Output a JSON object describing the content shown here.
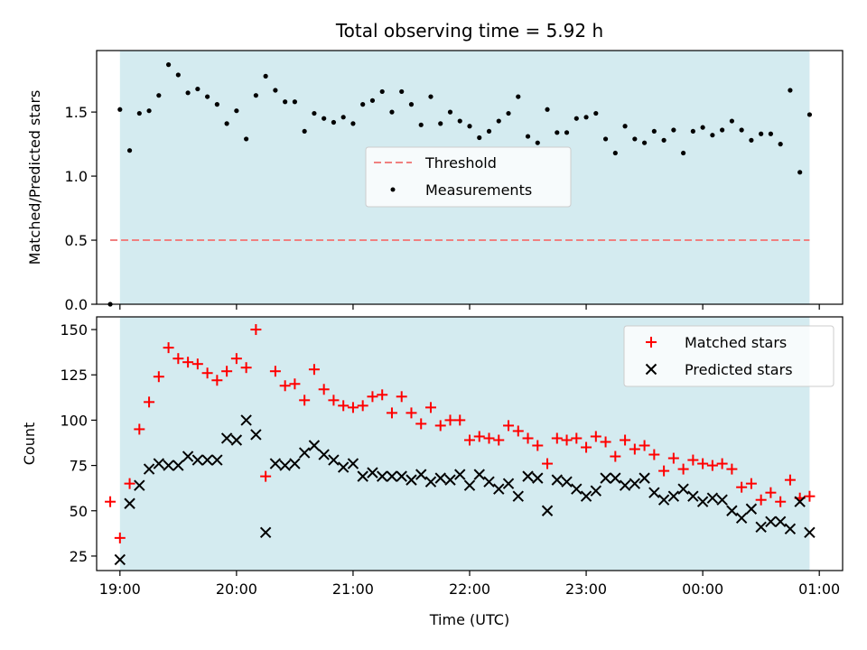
{
  "chart_data": [
    {
      "type": "scatter",
      "title": "Total observing time = 5.92 h",
      "ylabel": "Matched/Predicted stars",
      "xlabel": "",
      "xlim": [
        "18:48",
        "01:12"
      ],
      "ylim": [
        0,
        1.98
      ],
      "y_ticks": [
        0.0,
        0.5,
        1.0,
        1.5
      ],
      "y_tick_labels": [
        "0.0",
        "0.5",
        "1.0",
        "1.5"
      ],
      "x_tick_values": [
        "19:00",
        "20:00",
        "21:00",
        "22:00",
        "23:00",
        "00:00",
        "01:00"
      ],
      "grid": false,
      "legend_position": "center",
      "shaded_span": {
        "from": "19:00",
        "to": "00:55",
        "color": "#d4ebf0"
      },
      "threshold": {
        "name": "Threshold",
        "y": 0.5,
        "from": "18:55",
        "to": "00:55",
        "color": "#f08080",
        "style": "dashed"
      },
      "series": [
        {
          "name": "Measurements",
          "marker": "dot",
          "color": "#000000",
          "points": [
            [
              "18:55",
              0.0
            ],
            [
              "19:00",
              1.52
            ],
            [
              "19:05",
              1.2
            ],
            [
              "19:10",
              1.49
            ],
            [
              "19:15",
              1.51
            ],
            [
              "19:20",
              1.63
            ],
            [
              "19:25",
              1.87
            ],
            [
              "19:30",
              1.79
            ],
            [
              "19:35",
              1.65
            ],
            [
              "19:40",
              1.68
            ],
            [
              "19:45",
              1.62
            ],
            [
              "19:50",
              1.56
            ],
            [
              "19:55",
              1.41
            ],
            [
              "20:00",
              1.51
            ],
            [
              "20:05",
              1.29
            ],
            [
              "20:10",
              1.63
            ],
            [
              "20:15",
              1.78
            ],
            [
              "20:20",
              1.67
            ],
            [
              "20:25",
              1.58
            ],
            [
              "20:30",
              1.58
            ],
            [
              "20:35",
              1.35
            ],
            [
              "20:40",
              1.49
            ],
            [
              "20:45",
              1.45
            ],
            [
              "20:50",
              1.42
            ],
            [
              "20:55",
              1.46
            ],
            [
              "21:00",
              1.41
            ],
            [
              "21:05",
              1.56
            ],
            [
              "21:10",
              1.59
            ],
            [
              "21:15",
              1.66
            ],
            [
              "21:20",
              1.5
            ],
            [
              "21:25",
              1.66
            ],
            [
              "21:30",
              1.56
            ],
            [
              "21:35",
              1.4
            ],
            [
              "21:40",
              1.62
            ],
            [
              "21:45",
              1.41
            ],
            [
              "21:50",
              1.5
            ],
            [
              "21:55",
              1.43
            ],
            [
              "22:00",
              1.39
            ],
            [
              "22:05",
              1.3
            ],
            [
              "22:10",
              1.35
            ],
            [
              "22:15",
              1.43
            ],
            [
              "22:20",
              1.49
            ],
            [
              "22:25",
              1.62
            ],
            [
              "22:30",
              1.31
            ],
            [
              "22:35",
              1.26
            ],
            [
              "22:40",
              1.52
            ],
            [
              "22:45",
              1.34
            ],
            [
              "22:50",
              1.34
            ],
            [
              "22:55",
              1.45
            ],
            [
              "23:00",
              1.46
            ],
            [
              "23:05",
              1.49
            ],
            [
              "23:10",
              1.29
            ],
            [
              "23:15",
              1.18
            ],
            [
              "23:20",
              1.39
            ],
            [
              "23:25",
              1.29
            ],
            [
              "23:30",
              1.26
            ],
            [
              "23:35",
              1.35
            ],
            [
              "23:40",
              1.28
            ],
            [
              "23:45",
              1.36
            ],
            [
              "23:50",
              1.18
            ],
            [
              "23:55",
              1.35
            ],
            [
              "00:00",
              1.38
            ],
            [
              "00:05",
              1.32
            ],
            [
              "00:10",
              1.36
            ],
            [
              "00:15",
              1.43
            ],
            [
              "00:20",
              1.36
            ],
            [
              "00:25",
              1.28
            ],
            [
              "00:30",
              1.33
            ],
            [
              "00:35",
              1.33
            ],
            [
              "00:40",
              1.25
            ],
            [
              "00:45",
              1.67
            ],
            [
              "00:50",
              1.03
            ],
            [
              "00:55",
              1.48
            ]
          ]
        }
      ]
    },
    {
      "type": "scatter",
      "title": "",
      "ylabel": "Count",
      "xlabel": "Time (UTC)",
      "xlim": [
        "18:48",
        "01:12"
      ],
      "ylim": [
        17,
        157
      ],
      "y_ticks": [
        25,
        50,
        75,
        100,
        125,
        150
      ],
      "y_tick_labels": [
        "25",
        "50",
        "75",
        "100",
        "125",
        "150"
      ],
      "x_tick_values": [
        "19:00",
        "20:00",
        "21:00",
        "22:00",
        "23:00",
        "00:00",
        "01:00"
      ],
      "x_tick_labels": [
        "19:00",
        "20:00",
        "21:00",
        "22:00",
        "23:00",
        "00:00",
        "01:00"
      ],
      "grid": false,
      "legend_position": "top-right",
      "shaded_span": {
        "from": "19:00",
        "to": "00:55",
        "color": "#d4ebf0"
      },
      "series": [
        {
          "name": "Matched stars",
          "marker": "plus",
          "color": "#ff0000",
          "points": [
            [
              "18:55",
              55
            ],
            [
              "19:00",
              35
            ],
            [
              "19:05",
              65
            ],
            [
              "19:10",
              95
            ],
            [
              "19:15",
              110
            ],
            [
              "19:20",
              124
            ],
            [
              "19:25",
              140
            ],
            [
              "19:30",
              134
            ],
            [
              "19:35",
              132
            ],
            [
              "19:40",
              131
            ],
            [
              "19:45",
              126
            ],
            [
              "19:50",
              122
            ],
            [
              "19:55",
              127
            ],
            [
              "20:00",
              134
            ],
            [
              "20:05",
              129
            ],
            [
              "20:10",
              150
            ],
            [
              "20:15",
              69
            ],
            [
              "20:20",
              127
            ],
            [
              "20:25",
              119
            ],
            [
              "20:30",
              120
            ],
            [
              "20:35",
              111
            ],
            [
              "20:40",
              128
            ],
            [
              "20:45",
              117
            ],
            [
              "20:50",
              111
            ],
            [
              "20:55",
              108
            ],
            [
              "21:00",
              107
            ],
            [
              "21:05",
              108
            ],
            [
              "21:10",
              113
            ],
            [
              "21:15",
              114
            ],
            [
              "21:20",
              104
            ],
            [
              "21:25",
              113
            ],
            [
              "21:30",
              104
            ],
            [
              "21:35",
              98
            ],
            [
              "21:40",
              107
            ],
            [
              "21:45",
              97
            ],
            [
              "21:50",
              100
            ],
            [
              "21:55",
              100
            ],
            [
              "22:00",
              89
            ],
            [
              "22:05",
              91
            ],
            [
              "22:10",
              90
            ],
            [
              "22:15",
              89
            ],
            [
              "22:20",
              97
            ],
            [
              "22:25",
              94
            ],
            [
              "22:30",
              90
            ],
            [
              "22:35",
              86
            ],
            [
              "22:40",
              76
            ],
            [
              "22:45",
              90
            ],
            [
              "22:50",
              89
            ],
            [
              "22:55",
              90
            ],
            [
              "23:00",
              85
            ],
            [
              "23:05",
              91
            ],
            [
              "23:10",
              88
            ],
            [
              "23:15",
              80
            ],
            [
              "23:20",
              89
            ],
            [
              "23:25",
              84
            ],
            [
              "23:30",
              86
            ],
            [
              "23:35",
              81
            ],
            [
              "23:40",
              72
            ],
            [
              "23:45",
              79
            ],
            [
              "23:50",
              73
            ],
            [
              "23:55",
              78
            ],
            [
              "00:00",
              76
            ],
            [
              "00:05",
              75
            ],
            [
              "00:10",
              76
            ],
            [
              "00:15",
              73
            ],
            [
              "00:20",
              63
            ],
            [
              "00:25",
              65
            ],
            [
              "00:30",
              56
            ],
            [
              "00:35",
              60
            ],
            [
              "00:40",
              55
            ],
            [
              "00:45",
              67
            ],
            [
              "00:50",
              57
            ],
            [
              "00:55",
              58
            ]
          ]
        },
        {
          "name": "Predicted stars",
          "marker": "x",
          "color": "#000000",
          "points": [
            [
              "19:00",
              23
            ],
            [
              "19:05",
              54
            ],
            [
              "19:10",
              64
            ],
            [
              "19:15",
              73
            ],
            [
              "19:20",
              76
            ],
            [
              "19:25",
              75
            ],
            [
              "19:30",
              75
            ],
            [
              "19:35",
              80
            ],
            [
              "19:40",
              78
            ],
            [
              "19:45",
              78
            ],
            [
              "19:50",
              78
            ],
            [
              "19:55",
              90
            ],
            [
              "20:00",
              89
            ],
            [
              "20:05",
              100
            ],
            [
              "20:10",
              92
            ],
            [
              "20:15",
              38
            ],
            [
              "20:20",
              76
            ],
            [
              "20:25",
              75
            ],
            [
              "20:30",
              76
            ],
            [
              "20:35",
              82
            ],
            [
              "20:40",
              86
            ],
            [
              "20:45",
              81
            ],
            [
              "20:50",
              78
            ],
            [
              "20:55",
              74
            ],
            [
              "21:00",
              76
            ],
            [
              "21:05",
              69
            ],
            [
              "21:10",
              71
            ],
            [
              "21:15",
              69
            ],
            [
              "21:20",
              69
            ],
            [
              "21:25",
              69
            ],
            [
              "21:30",
              67
            ],
            [
              "21:35",
              70
            ],
            [
              "21:40",
              66
            ],
            [
              "21:45",
              68
            ],
            [
              "21:50",
              67
            ],
            [
              "21:55",
              70
            ],
            [
              "22:00",
              64
            ],
            [
              "22:05",
              70
            ],
            [
              "22:10",
              66
            ],
            [
              "22:15",
              62
            ],
            [
              "22:20",
              65
            ],
            [
              "22:25",
              58
            ],
            [
              "22:30",
              69
            ],
            [
              "22:35",
              68
            ],
            [
              "22:40",
              50
            ],
            [
              "22:45",
              67
            ],
            [
              "22:50",
              66
            ],
            [
              "22:55",
              62
            ],
            [
              "23:00",
              58
            ],
            [
              "23:05",
              61
            ],
            [
              "23:10",
              68
            ],
            [
              "23:15",
              68
            ],
            [
              "23:20",
              64
            ],
            [
              "23:25",
              65
            ],
            [
              "23:30",
              68
            ],
            [
              "23:35",
              60
            ],
            [
              "23:40",
              56
            ],
            [
              "23:45",
              58
            ],
            [
              "23:50",
              62
            ],
            [
              "23:55",
              58
            ],
            [
              "00:00",
              55
            ],
            [
              "00:05",
              57
            ],
            [
              "00:10",
              56
            ],
            [
              "00:15",
              50
            ],
            [
              "00:20",
              46
            ],
            [
              "00:25",
              51
            ],
            [
              "00:30",
              41
            ],
            [
              "00:35",
              44
            ],
            [
              "00:40",
              44
            ],
            [
              "00:45",
              40
            ],
            [
              "00:50",
              55
            ],
            [
              "00:55",
              38
            ]
          ]
        }
      ]
    }
  ]
}
